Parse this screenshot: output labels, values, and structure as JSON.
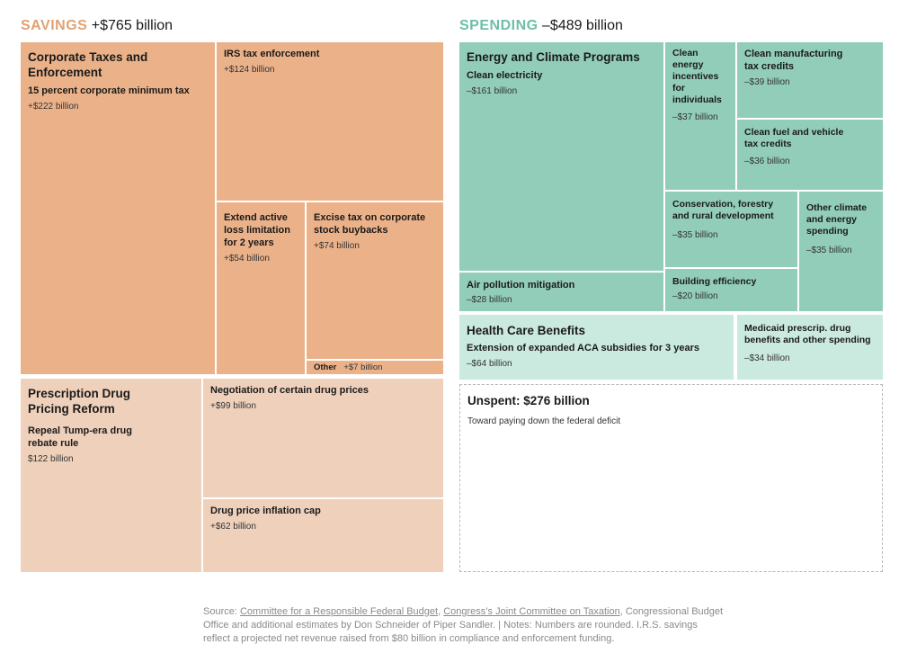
{
  "colors": {
    "savings_accent": "#e0a173",
    "spending_accent": "#6cbfa8",
    "savings_primary": "#ebb28a",
    "savings_secondary": "#efd1bb",
    "spending_primary": "#92cdb9",
    "spending_secondary": "#cae9df"
  },
  "chart_data": {
    "type": "treemap",
    "sections": [
      {
        "label": "SAVINGS",
        "total": "+$765 billion",
        "groups": [
          {
            "title": "Corporate Taxes and Enforcement",
            "items": [
              {
                "name": "15 percent corporate minimum tax",
                "value": "+$222 billion",
                "amount": 222
              },
              {
                "name": "IRS tax enforcement",
                "value": "+$124 billion",
                "amount": 124
              },
              {
                "name": "Extend active loss limitation for 2 years",
                "value": "+$54 billion",
                "amount": 54
              },
              {
                "name": "Excise tax on corporate stock buybacks",
                "value": "+$74 billion",
                "amount": 74
              },
              {
                "name": "Other",
                "value": "+$7 billion",
                "amount": 7
              }
            ]
          },
          {
            "title": "Prescription Drug Pricing Reform",
            "items": [
              {
                "name": "Repeal Tump-era drug rebate rule",
                "value": "$122 billion",
                "amount": 122
              },
              {
                "name": "Negotiation of certain drug prices",
                "value": "+$99 billion",
                "amount": 99
              },
              {
                "name": "Drug price inflation cap",
                "value": "+$62 billion",
                "amount": 62
              }
            ]
          }
        ]
      },
      {
        "label": "SPENDING",
        "total": "–$489 billion",
        "groups": [
          {
            "title": "Energy and Climate Programs",
            "items": [
              {
                "name": "Clean electricity",
                "value": "–$161 billion",
                "amount": -161
              },
              {
                "name": "Clean energy incentives for individuals",
                "value": "–$37 billion",
                "amount": -37
              },
              {
                "name": "Clean manufacturing tax credits",
                "value": "–$39 billion",
                "amount": -39
              },
              {
                "name": "Clean fuel and vehicle tax credits",
                "value": "–$36 billion",
                "amount": -36
              },
              {
                "name": "Conservation, forestry and rural development",
                "value": "–$35 billion",
                "amount": -35
              },
              {
                "name": "Other climate and energy spending",
                "value": "–$35 billion",
                "amount": -35
              },
              {
                "name": "Air pollution mitigation",
                "value": "–$28 billion",
                "amount": -28
              },
              {
                "name": "Building efficiency",
                "value": "–$20 billion",
                "amount": -20
              }
            ]
          },
          {
            "title": "Health Care Benefits",
            "items": [
              {
                "name": "Extension of expanded ACA subsidies for 3 years",
                "value": "–$64 billion",
                "amount": -64
              },
              {
                "name": "Medicaid prescrip. drug benefits and other spending",
                "value": "–$34 billion",
                "amount": -34
              }
            ]
          }
        ],
        "unspent": {
          "title": "Unspent: $276 billion",
          "description": "Toward paying down the federal deficit",
          "amount": 276
        }
      }
    ]
  },
  "header": {
    "savings_label": "SAVINGS",
    "savings_total": "+$765 billion",
    "spending_label": "SPENDING",
    "spending_total": "–$489 billion"
  },
  "tiles": {
    "corp": {
      "title_l1": "Corporate Taxes and",
      "title_l2": "Enforcement",
      "sub": "15 percent corporate minimum tax",
      "val": "+$222 billion"
    },
    "irs": {
      "name": "IRS tax enforcement",
      "val": "+$124 billion"
    },
    "loss": {
      "l1": "Extend active",
      "l2": "loss limitation",
      "l3": "for 2 years",
      "val": "+$54 billion"
    },
    "excise": {
      "l1": "Excise tax on corporate",
      "l2": "stock buybacks",
      "val": "+$74 billion"
    },
    "other": {
      "name": "Other",
      "val": "+$7 billion"
    },
    "drug": {
      "title_l1": "Prescription Drug",
      "title_l2": "Pricing Reform",
      "sub_l1": "Repeal Tump-era drug",
      "sub_l2": "rebate rule",
      "val": "$122 billion"
    },
    "nego": {
      "name": "Negotiation of certain drug prices",
      "val": "+$99 billion"
    },
    "infl": {
      "name": "Drug price inflation cap",
      "val": "+$62 billion"
    },
    "energy": {
      "title": "Energy and Climate Programs",
      "sub": "Clean electricity",
      "val": "–$161 billion"
    },
    "incent": {
      "l1": "Clean energy",
      "l2": "incentives",
      "l3": "for individuals",
      "val": "–$37 billion"
    },
    "manuf": {
      "l1": "Clean manufacturing",
      "l2": "tax credits",
      "val": "–$39 billion"
    },
    "fuel": {
      "l1": "Clean fuel and vehicle",
      "l2": "tax credits",
      "val": "–$36 billion"
    },
    "conserv": {
      "l1": "Conservation, forestry",
      "l2": "and rural development",
      "val": "–$35 billion"
    },
    "otherclim": {
      "l1": "Other climate",
      "l2": "and energy",
      "l3": "spending",
      "val": "–$35 billion"
    },
    "air": {
      "name": "Air pollution mitigation",
      "val": "–$28 billion"
    },
    "bldg": {
      "name": "Building efficiency",
      "val": "–$20 billion"
    },
    "health": {
      "title": "Health Care Benefits",
      "sub": "Extension of expanded ACA subsidies for 3 years",
      "val": "–$64 billion"
    },
    "medicaid": {
      "l1": "Medicaid prescrip. drug",
      "l2": "benefits and other spending",
      "val": "–$34 billion"
    },
    "unspent": {
      "title": "Unspent: $276 billion",
      "desc": "Toward paying down the federal deficit"
    }
  },
  "source": {
    "prefix": "Source: ",
    "link1": "Committee for a Responsible Federal Budget",
    "sep1": ", ",
    "link2": "Congress’s Joint Committee on Taxation",
    "rest": ", Congressional Budget Office and additional estimates by Don Schneider of Piper Sandler. | Notes: Numbers are rounded. I.R.S. savings reflect a projected net revenue raised from $80 billion in compliance and enforcement funding."
  }
}
